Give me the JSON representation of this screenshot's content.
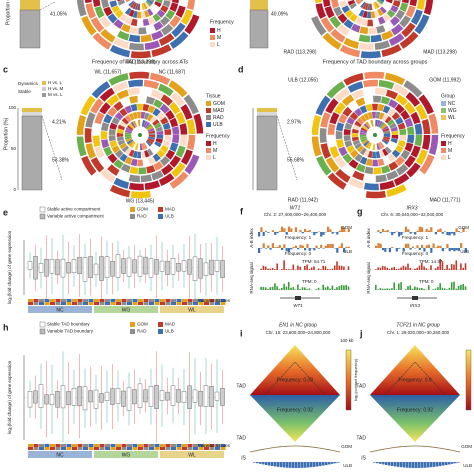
{
  "panel_a": {
    "percent": "41.05%",
    "ring_label": "WG (113,298)",
    "legend_title": "Frequency",
    "legend": [
      "H",
      "M",
      "L"
    ],
    "axis_label": "Proportion ("
  },
  "panel_b": {
    "percent": "40.09%",
    "ring_labels": [
      "RAD (113,298)",
      "MAD (113,298)"
    ]
  },
  "panel_c": {
    "letter": "c",
    "title": "Frequency of TAD boundary across ATs",
    "ring_labels": [
      "WL (11,657)",
      "NC (11,687)",
      "WG (13,445)"
    ],
    "legend_groups": [
      "Dynamics",
      "Stable"
    ],
    "legend": [
      "H vs. L",
      "H vs. M",
      "M vs. L"
    ],
    "axis_label": "Proportion (%)",
    "yticks": [
      "0",
      "50",
      "100"
    ],
    "percents": [
      "4.21%",
      "53.38%"
    ],
    "tissue_title": "Tissue",
    "tissues": [
      "GOM",
      "MAD",
      "RAD",
      "ULB"
    ],
    "freq_title": "Frequency",
    "freq": [
      "H",
      "M",
      "L"
    ]
  },
  "panel_d": {
    "letter": "d",
    "title": "Frequency of TAD boundary across groups",
    "ring_labels": [
      "ULB (12,055)",
      "GOM (11,992)",
      "RAD (11,942)",
      "MAD (11,771)"
    ],
    "percents": [
      "2.97%",
      "55.68%"
    ],
    "group_title": "Group",
    "groups": [
      "NC",
      "WG",
      "WL"
    ],
    "freq_title": "Frequency",
    "freq": [
      "H",
      "M",
      "L"
    ]
  },
  "panel_e": {
    "letter": "e",
    "legend": [
      "Stable active compartment",
      "Variable active compartment"
    ],
    "tissues": [
      "GOM",
      "MAD",
      "RAD",
      "ULB"
    ],
    "y_label": "log₂(fold change) of gene expression",
    "groups": [
      "NC",
      "WG",
      "WL"
    ],
    "x_label": "Pairwise tissues"
  },
  "panel_f": {
    "letter": "f",
    "gene": "WT1",
    "coords": "Chr. 2: 27,400,000~29,400,000",
    "tracks": [
      "A-B index",
      "RNA-seq signal"
    ],
    "tissues": [
      "GOM",
      "ULB"
    ],
    "freq": [
      "Frequency: 1",
      "Frequency: 0"
    ],
    "tpm": [
      "TPM: 64.71",
      "TPM: 0"
    ]
  },
  "panel_g": {
    "letter": "g",
    "gene": "IRX3",
    "coords": "Chr. 6: 30,040,000~32,040,000",
    "tracks": [
      "A-B index",
      "RNA-seq signal"
    ],
    "tissues": [
      "GOM",
      "ULB"
    ],
    "freq": [
      "Frequency: 1",
      "Frequency: 0"
    ],
    "tpm": [
      "TPM: 14.37",
      "TPM: 0"
    ]
  },
  "panel_h": {
    "letter": "h",
    "legend": [
      "Stable TAD boundary",
      "Variable TAD boundary"
    ],
    "tissues": [
      "GOM",
      "MAD",
      "RAD",
      "ULB"
    ],
    "y_label": "log₂(fold change) of gene expression",
    "groups": [
      "NC",
      "WG",
      "WL"
    ],
    "x_label": "Pairwise tissues"
  },
  "panel_i": {
    "letter": "i",
    "title": "EN1 in NC group",
    "coords": "Chr. 15: 23,600,000~24,800,000",
    "scale": "100 kb",
    "freq": [
      "Frequency: 0.09",
      "Frequency: 0.02"
    ],
    "labels": [
      "TAD",
      "GOM",
      "ULB",
      "IS"
    ],
    "colorbar": "log₁₀(contact frequency)"
  },
  "panel_j": {
    "letter": "j",
    "title": "TCF21 in NC group",
    "coords": "Chr. 1: 29,020,000~30,260,000",
    "freq": [
      "Frequency: 0.9",
      "Frequency: 0.92"
    ],
    "labels": [
      "TAD",
      "GOM",
      "ULB",
      "IS"
    ],
    "colorbar": "log₁₀(contact frequency)"
  }
}
